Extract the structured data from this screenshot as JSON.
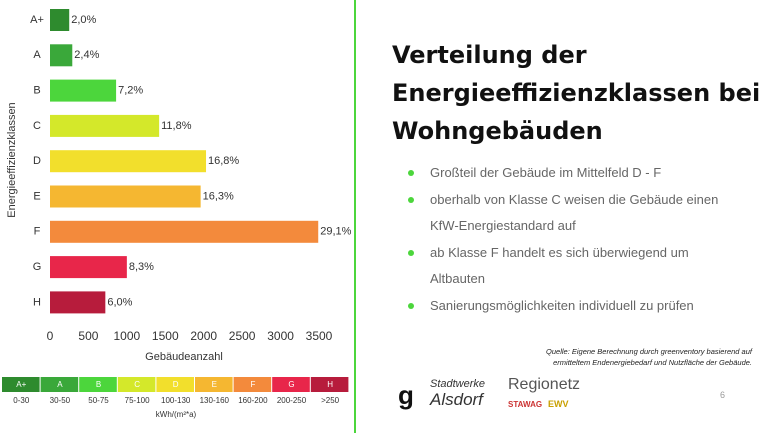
{
  "chart_data": {
    "type": "hbar",
    "y_label": "Energieeffizienzklassen",
    "x_label": "Gebäudeanzahl",
    "categories": [
      "A+",
      "A",
      "B",
      "C",
      "D",
      "E",
      "F",
      "G",
      "H"
    ],
    "values": [
      250,
      290,
      860,
      1420,
      2030,
      1960,
      3490,
      1000,
      720
    ],
    "percent_labels": [
      "2,0%",
      "2,4%",
      "7,2%",
      "11,8%",
      "16,8%",
      "16,3%",
      "29,1%",
      "8,3%",
      "6,0%"
    ],
    "colors": [
      "#2e8b2e",
      "#3aa83a",
      "#4cd63c",
      "#d4e82a",
      "#f2df2c",
      "#f5b731",
      "#f38a3c",
      "#e8264a",
      "#b71c3c"
    ],
    "xlim": [
      0,
      3500
    ],
    "xticks": [
      0,
      500,
      1000,
      1500,
      2000,
      2500,
      3000,
      3500
    ],
    "grid": false
  },
  "energy_scale": {
    "ranges": [
      "0-30",
      "30-50",
      "50-75",
      "75-100",
      "100-130",
      "130-160",
      "160-200",
      "200-250",
      ">250"
    ],
    "unit": "kWh/(m²*a)"
  },
  "slide": {
    "title": [
      "Verteilung der",
      "Energieeffizienzklassen bei",
      "Wohngebäuden"
    ],
    "bullets": [
      "Großteil der Gebäude im Mittelfeld D - F",
      "oberhalb von Klasse C weisen die Gebäude einen KfW-Energiestandard auf",
      "ab Klasse F handelt es sich überwiegend um Altbauten",
      "Sanierungsmöglichkeiten individuell zu prüfen"
    ],
    "source": [
      "Quelle: Eigene Berechnung durch greenventory basierend auf",
      "ermitteltem Endenergiebedarf und Nutzfläche der Gebäude."
    ],
    "logos": [
      "g",
      "Stadtwerke",
      "Alsdorf",
      "Regionetz",
      "STAWAG",
      "EWV"
    ],
    "page_number": "6"
  }
}
